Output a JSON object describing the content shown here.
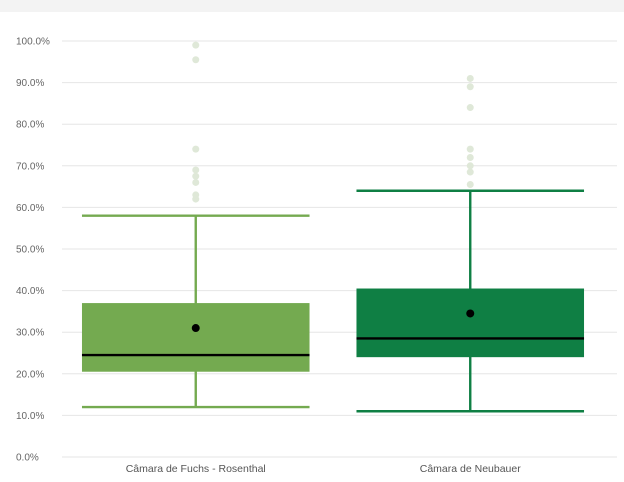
{
  "chart_data": {
    "type": "box",
    "title": "",
    "xlabel": "",
    "ylabel": "",
    "ylim": [
      0,
      100
    ],
    "y_tick_format": "percent_1dp",
    "yticks": [
      "0.0%",
      "10.0%",
      "20.0%",
      "30.0%",
      "40.0%",
      "50.0%",
      "60.0%",
      "70.0%",
      "80.0%",
      "90.0%",
      "100.0%"
    ],
    "ytick_values": [
      0,
      10,
      20,
      30,
      40,
      50,
      60,
      70,
      80,
      90,
      100
    ],
    "grid": true,
    "legend": "none",
    "categories": [
      "Câmara de Fuchs - Rosenthal",
      "Câmara de Neubauer"
    ],
    "boxes": [
      {
        "category": "Câmara de Fuchs - Rosenthal",
        "color": "#74aa50",
        "whisker_low": 12,
        "q1": 20.5,
        "median": 24.5,
        "q3": 37,
        "whisker_high": 58,
        "mean": 31,
        "outliers": [
          99,
          95.5,
          74,
          69,
          67.5,
          66,
          63,
          62
        ]
      },
      {
        "category": "Câmara de Neubauer",
        "color": "#0f7f44",
        "whisker_low": 11,
        "q1": 24,
        "median": 28.5,
        "q3": 40.5,
        "whisker_high": 64,
        "mean": 34.5,
        "outliers": [
          91,
          89,
          84,
          74,
          72,
          70,
          68.5,
          65.5
        ]
      }
    ],
    "colors": {
      "grid": "#e6e6e6",
      "mean_marker": "#000000",
      "median_line": "#000000",
      "outlier": "#dfe8d8"
    }
  }
}
